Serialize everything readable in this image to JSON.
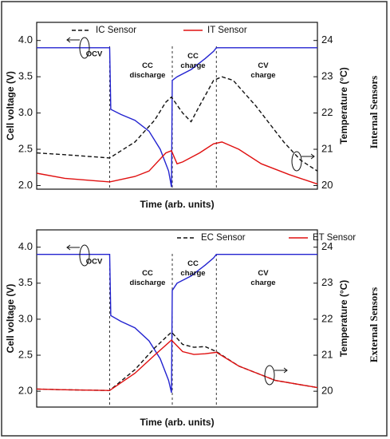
{
  "chart_data": [
    {
      "type": "line",
      "side_label": "Internal Sensors",
      "x_label": "Time (arb. units)",
      "y_label": "Cell voltage (V)",
      "y2_label": "Temperature (°C)",
      "xlim": [
        0,
        100
      ],
      "ylim": [
        1.95,
        4.25
      ],
      "y2lim": [
        19.9,
        24.5
      ],
      "yticks": [
        {
          "value": 2,
          "label": "2.0"
        },
        2.5,
        {
          "value": 3,
          "label": "3.0"
        },
        3.5,
        {
          "value": 4,
          "label": "4.0"
        }
      ],
      "y2ticks": [
        20,
        21,
        22,
        23,
        24
      ],
      "phase_boundaries": [
        26,
        48.3,
        64
      ],
      "annotations": [
        "OCV",
        "CC discharge",
        "CC charge",
        "CV charge"
      ],
      "series": [
        {
          "name": "Cell voltage",
          "color": "#2323d0",
          "dash": false,
          "x": [
            0,
            26,
            26.4,
            30,
            35,
            40,
            44,
            47,
            48,
            48.3,
            50,
            55,
            60,
            63,
            64,
            100
          ],
          "values": [
            3.9,
            3.9,
            3.05,
            2.98,
            2.9,
            2.75,
            2.5,
            2.2,
            1.98,
            3.45,
            3.5,
            3.6,
            3.75,
            3.85,
            3.9,
            3.9
          ]
        },
        {
          "name": "IC Sensor",
          "color": "#111111",
          "dash": true,
          "axis": "y2",
          "x": [
            0,
            10,
            26,
            35,
            42,
            46,
            48,
            52,
            55,
            58,
            63,
            66,
            70,
            78,
            88,
            94,
            100
          ],
          "values": [
            20.9,
            20.85,
            20.76,
            21.2,
            21.8,
            22.3,
            22.44,
            22.0,
            21.76,
            22.2,
            22.9,
            23.0,
            22.9,
            22.2,
            21.2,
            20.7,
            20.4
          ]
        },
        {
          "name": "IT Sensor",
          "color": "#e01010",
          "dash": false,
          "axis": "y2",
          "x": [
            0,
            10,
            26,
            35,
            40,
            46,
            48,
            50,
            52,
            58,
            63,
            66,
            72,
            80,
            90,
            100
          ],
          "values": [
            20.34,
            20.2,
            20.1,
            20.25,
            20.4,
            20.9,
            20.96,
            20.6,
            20.65,
            20.9,
            21.15,
            21.2,
            21.0,
            20.6,
            20.3,
            20.04
          ]
        }
      ]
    },
    {
      "type": "line",
      "side_label": "External Sensors",
      "x_label": "Time (arb. units)",
      "y_label": "Cell voltage (V)",
      "y2_label": "Temperature (°C)",
      "xlim": [
        0,
        100
      ],
      "ylim": [
        1.78,
        4.24
      ],
      "y2lim": [
        19.56,
        24.48
      ],
      "yticks": [
        {
          "value": 2,
          "label": "2.0"
        },
        2.5,
        {
          "value": 3,
          "label": "3.0"
        },
        3.5,
        {
          "value": 4,
          "label": "4.0"
        }
      ],
      "y2ticks": [
        20,
        21,
        22,
        23,
        24
      ],
      "phase_boundaries": [
        26,
        48.3,
        64
      ],
      "annotations": [
        "OCV",
        "CC discharge",
        "CC charge",
        "CV charge"
      ],
      "series": [
        {
          "name": "Cell voltage",
          "color": "#2323d0",
          "dash": false,
          "x": [
            0,
            26,
            26.4,
            30,
            35,
            40,
            44,
            47,
            48,
            48.3,
            50,
            55,
            60,
            63,
            64,
            100
          ],
          "values": [
            3.9,
            3.9,
            3.05,
            2.97,
            2.88,
            2.7,
            2.45,
            2.15,
            1.98,
            3.4,
            3.5,
            3.6,
            3.75,
            3.85,
            3.9,
            3.9
          ]
        },
        {
          "name": "EC Sensor",
          "color": "#111111",
          "dash": true,
          "axis": "y2",
          "x": [
            0,
            10,
            26,
            35,
            42,
            48,
            52,
            56,
            60,
            64,
            72,
            85,
            100
          ],
          "values": [
            20.06,
            20.04,
            20.02,
            20.6,
            21.2,
            21.64,
            21.3,
            21.22,
            21.24,
            21.1,
            20.7,
            20.3,
            20.1
          ]
        },
        {
          "name": "ET Sensor",
          "color": "#e01010",
          "dash": false,
          "axis": "y2",
          "x": [
            0,
            10,
            26,
            35,
            42,
            48,
            52,
            56,
            60,
            64,
            72,
            85,
            100
          ],
          "values": [
            20.06,
            20.04,
            20.02,
            20.5,
            21.0,
            21.42,
            21.1,
            21.02,
            21.04,
            21.08,
            20.7,
            20.3,
            20.1
          ]
        }
      ]
    }
  ]
}
